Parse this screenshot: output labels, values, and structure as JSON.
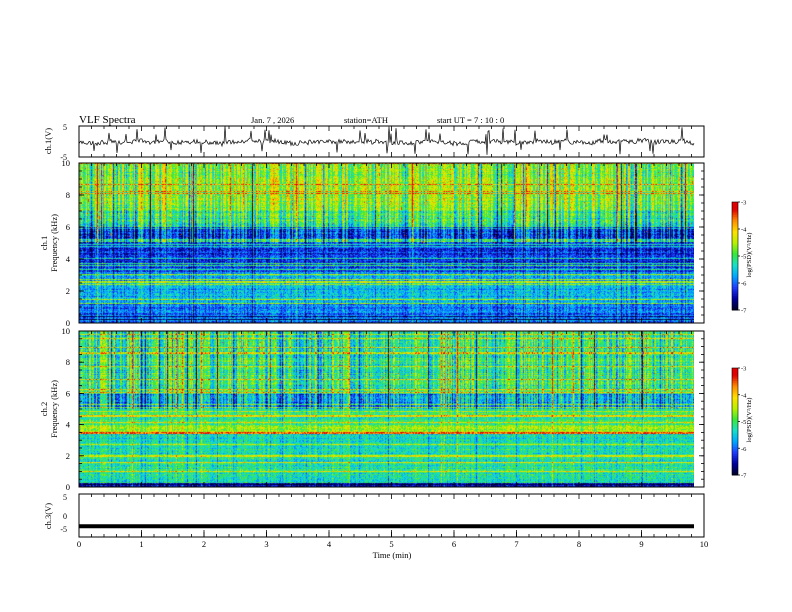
{
  "header": {
    "title": "VLF  Spectra",
    "date": "Jan. 7  , 2026",
    "station": "station=ATH",
    "start": "start  UT  =   7 : 10 : 0"
  },
  "colors": {
    "spectrum": [
      "#00002a",
      "#0000a0",
      "#1f3cff",
      "#00a8ff",
      "#18e0c8",
      "#3ae83a",
      "#b8f000",
      "#ffe000",
      "#ff8c00",
      "#e00000",
      "#ffffff"
    ]
  },
  "chart_data": [
    {
      "type": "line",
      "name": "ch1-voltage",
      "ylabel": "ch.1(V)",
      "ylim": [
        -5,
        5
      ],
      "yticks": [
        "5",
        "-5"
      ],
      "xlim": [
        0,
        10
      ],
      "trace": "noisy signal around -0.5 V with sparse spikes reaching +5 V",
      "mean": -0.5
    },
    {
      "type": "heatmap",
      "name": "ch1-spectrogram",
      "ylabel": "ch.1\nFrequency (kHz)",
      "ylabel_line1": "ch.1",
      "ylabel_line2": "Frequency (kHz)",
      "ylim": [
        0,
        10
      ],
      "yticks": [
        "0",
        "2",
        "4",
        "6",
        "8",
        "10"
      ],
      "xlim": [
        0,
        9.8
      ],
      "colorbar": {
        "label": "log(PSD)(V²/Hz)",
        "range": [
          -7,
          -3
        ],
        "ticks": [
          "-3",
          "-4",
          "-5",
          "-6",
          "-7"
        ]
      }
    },
    {
      "type": "heatmap",
      "name": "ch2-spectrogram",
      "ylabel": "ch.2\nFrequency (kHz)",
      "ylabel_line1": "ch.2",
      "ylabel_line2": "Frequency (kHz)",
      "ylim": [
        0,
        10
      ],
      "yticks": [
        "0",
        "2",
        "4",
        "6",
        "8",
        "10"
      ],
      "xlim": [
        0,
        9.8
      ],
      "colorbar": {
        "label": "log(PSD)(V²/Hz)",
        "range": [
          -7,
          -3
        ],
        "ticks": [
          "-3",
          "-4",
          "-5",
          "-6",
          "-7"
        ]
      }
    },
    {
      "type": "line",
      "name": "ch3-voltage",
      "ylabel": "ch.3(V)",
      "ylim": [
        -5,
        5
      ],
      "yticks": [
        "5",
        "0",
        "-5"
      ],
      "xlim": [
        0,
        10
      ],
      "constant_value": -2.5
    }
  ],
  "xaxis": {
    "label": "Time  (min)",
    "ticks": [
      "0",
      "1",
      "2",
      "3",
      "4",
      "5",
      "6",
      "7",
      "8",
      "9",
      "10"
    ],
    "range": [
      0,
      10
    ]
  }
}
